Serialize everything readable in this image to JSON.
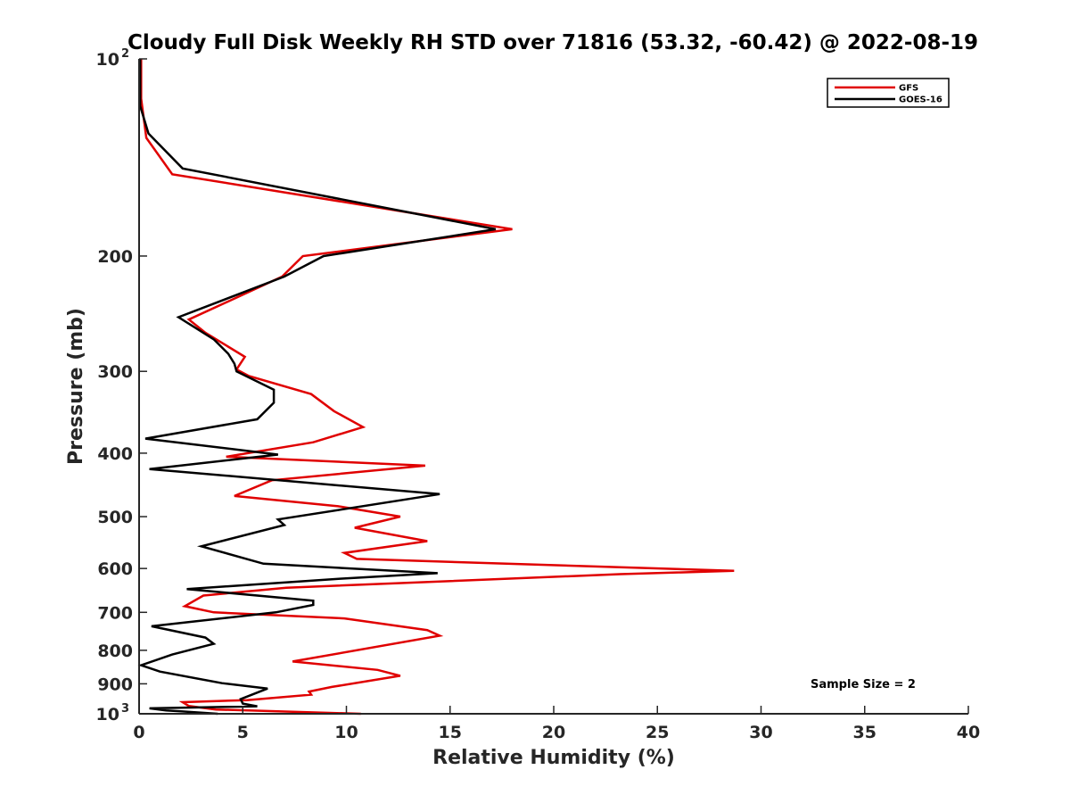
{
  "chart_data": {
    "type": "line",
    "title": "Cloudy Full Disk Weekly RH STD over 71816 (53.32, -60.42) @ 2022-08-19",
    "xlabel": "Relative Humidity (%)",
    "ylabel": "Pressure (mb)",
    "xlim": [
      0,
      40
    ],
    "ylim": [
      100,
      1000
    ],
    "y_scale": "log",
    "y_reversed": true,
    "grid": false,
    "legend_position": "top-right",
    "x_ticks": [
      "0",
      "5",
      "10",
      "15",
      "20",
      "25",
      "30",
      "35",
      "40"
    ],
    "y_ticks": [
      {
        "value": 100,
        "base": "10",
        "exp": "2"
      },
      {
        "value": 200,
        "label": "200"
      },
      {
        "value": 300,
        "label": "300"
      },
      {
        "value": 400,
        "label": "400"
      },
      {
        "value": 500,
        "label": "500"
      },
      {
        "value": 600,
        "label": "600"
      },
      {
        "value": 700,
        "label": "700"
      },
      {
        "value": 800,
        "label": "800"
      },
      {
        "value": 900,
        "label": "900"
      },
      {
        "value": 1000,
        "base": "10",
        "exp": "3"
      }
    ],
    "annotation": "Sample Size = 2",
    "series": [
      {
        "name": "GFS",
        "color": "#e00000",
        "points": [
          [
            0.1,
            100
          ],
          [
            0.1,
            115
          ],
          [
            0.35,
            132
          ],
          [
            1.6,
            150
          ],
          [
            18.0,
            182
          ],
          [
            7.9,
            200
          ],
          [
            6.9,
            215
          ],
          [
            2.4,
            250
          ],
          [
            3.2,
            262
          ],
          [
            5.1,
            285
          ],
          [
            4.7,
            298
          ],
          [
            5.3,
            305
          ],
          [
            8.3,
            325
          ],
          [
            9.4,
            345
          ],
          [
            10.8,
            365
          ],
          [
            8.4,
            385
          ],
          [
            4.2,
            405
          ],
          [
            13.8,
            418
          ],
          [
            6.4,
            440
          ],
          [
            4.6,
            465
          ],
          [
            9.6,
            482
          ],
          [
            12.6,
            500
          ],
          [
            10.4,
            520
          ],
          [
            13.9,
            545
          ],
          [
            9.9,
            568
          ],
          [
            10.5,
            580
          ],
          [
            28.7,
            605
          ],
          [
            23.2,
            612
          ],
          [
            7.1,
            642
          ],
          [
            3.1,
            660
          ],
          [
            2.2,
            685
          ],
          [
            3.6,
            700
          ],
          [
            9.9,
            715
          ],
          [
            13.9,
            745
          ],
          [
            14.5,
            760
          ],
          [
            7.4,
            832
          ],
          [
            11.5,
            857
          ],
          [
            12.6,
            875
          ],
          [
            9.3,
            910
          ],
          [
            8.2,
            925
          ],
          [
            8.3,
            935
          ],
          [
            5.2,
            953
          ],
          [
            2.1,
            960
          ],
          [
            2.4,
            973
          ],
          [
            3.7,
            985
          ],
          [
            10.7,
            1000
          ]
        ]
      },
      {
        "name": "GOES-16",
        "color": "#000000",
        "points": [
          [
            0.05,
            100
          ],
          [
            0.05,
            118
          ],
          [
            0.45,
            130
          ],
          [
            2.1,
            147
          ],
          [
            17.2,
            182
          ],
          [
            8.9,
            200
          ],
          [
            7.0,
            215
          ],
          [
            1.9,
            248
          ],
          [
            3.6,
            268
          ],
          [
            4.3,
            282
          ],
          [
            4.6,
            292
          ],
          [
            4.7,
            300
          ],
          [
            6.5,
            320
          ],
          [
            6.5,
            335
          ],
          [
            5.7,
            355
          ],
          [
            0.3,
            380
          ],
          [
            6.7,
            402
          ],
          [
            0.5,
            423
          ],
          [
            14.5,
            462
          ],
          [
            6.7,
            505
          ],
          [
            7.0,
            515
          ],
          [
            3.0,
            555
          ],
          [
            6.0,
            590
          ],
          [
            14.4,
            610
          ],
          [
            9.7,
            622
          ],
          [
            2.3,
            645
          ],
          [
            8.4,
            672
          ],
          [
            8.4,
            682
          ],
          [
            6.6,
            700
          ],
          [
            0.6,
            735
          ],
          [
            3.2,
            765
          ],
          [
            3.6,
            782
          ],
          [
            1.6,
            812
          ],
          [
            0.1,
            843
          ],
          [
            1.0,
            862
          ],
          [
            4.0,
            898
          ],
          [
            6.2,
            915
          ],
          [
            4.9,
            950
          ],
          [
            5.0,
            965
          ],
          [
            5.7,
            974
          ],
          [
            0.5,
            981
          ],
          [
            1.3,
            988
          ],
          [
            2.1,
            992
          ],
          [
            3.8,
            1000
          ]
        ]
      }
    ]
  }
}
